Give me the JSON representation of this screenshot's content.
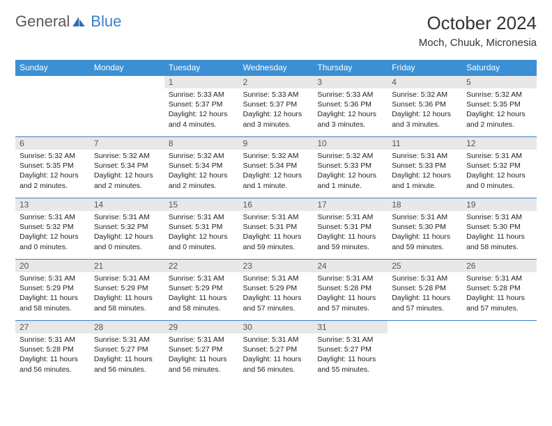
{
  "brand": {
    "part1": "General",
    "part2": "Blue",
    "icon_color": "#2e6fb5"
  },
  "header": {
    "title": "October 2024",
    "location": "Moch, Chuuk, Micronesia"
  },
  "colors": {
    "header_bg": "#3b8fd4",
    "header_fg": "#ffffff",
    "daynum_bg": "#e8e8e8",
    "rule": "#3b7fc4"
  },
  "day_labels": [
    "Sunday",
    "Monday",
    "Tuesday",
    "Wednesday",
    "Thursday",
    "Friday",
    "Saturday"
  ],
  "weeks": [
    [
      null,
      null,
      {
        "n": "1",
        "sr": "5:33 AM",
        "ss": "5:37 PM",
        "dl": "12 hours and 4 minutes."
      },
      {
        "n": "2",
        "sr": "5:33 AM",
        "ss": "5:37 PM",
        "dl": "12 hours and 3 minutes."
      },
      {
        "n": "3",
        "sr": "5:33 AM",
        "ss": "5:36 PM",
        "dl": "12 hours and 3 minutes."
      },
      {
        "n": "4",
        "sr": "5:32 AM",
        "ss": "5:36 PM",
        "dl": "12 hours and 3 minutes."
      },
      {
        "n": "5",
        "sr": "5:32 AM",
        "ss": "5:35 PM",
        "dl": "12 hours and 2 minutes."
      }
    ],
    [
      {
        "n": "6",
        "sr": "5:32 AM",
        "ss": "5:35 PM",
        "dl": "12 hours and 2 minutes."
      },
      {
        "n": "7",
        "sr": "5:32 AM",
        "ss": "5:34 PM",
        "dl": "12 hours and 2 minutes."
      },
      {
        "n": "8",
        "sr": "5:32 AM",
        "ss": "5:34 PM",
        "dl": "12 hours and 2 minutes."
      },
      {
        "n": "9",
        "sr": "5:32 AM",
        "ss": "5:34 PM",
        "dl": "12 hours and 1 minute."
      },
      {
        "n": "10",
        "sr": "5:32 AM",
        "ss": "5:33 PM",
        "dl": "12 hours and 1 minute."
      },
      {
        "n": "11",
        "sr": "5:31 AM",
        "ss": "5:33 PM",
        "dl": "12 hours and 1 minute."
      },
      {
        "n": "12",
        "sr": "5:31 AM",
        "ss": "5:32 PM",
        "dl": "12 hours and 0 minutes."
      }
    ],
    [
      {
        "n": "13",
        "sr": "5:31 AM",
        "ss": "5:32 PM",
        "dl": "12 hours and 0 minutes."
      },
      {
        "n": "14",
        "sr": "5:31 AM",
        "ss": "5:32 PM",
        "dl": "12 hours and 0 minutes."
      },
      {
        "n": "15",
        "sr": "5:31 AM",
        "ss": "5:31 PM",
        "dl": "12 hours and 0 minutes."
      },
      {
        "n": "16",
        "sr": "5:31 AM",
        "ss": "5:31 PM",
        "dl": "11 hours and 59 minutes."
      },
      {
        "n": "17",
        "sr": "5:31 AM",
        "ss": "5:31 PM",
        "dl": "11 hours and 59 minutes."
      },
      {
        "n": "18",
        "sr": "5:31 AM",
        "ss": "5:30 PM",
        "dl": "11 hours and 59 minutes."
      },
      {
        "n": "19",
        "sr": "5:31 AM",
        "ss": "5:30 PM",
        "dl": "11 hours and 58 minutes."
      }
    ],
    [
      {
        "n": "20",
        "sr": "5:31 AM",
        "ss": "5:29 PM",
        "dl": "11 hours and 58 minutes."
      },
      {
        "n": "21",
        "sr": "5:31 AM",
        "ss": "5:29 PM",
        "dl": "11 hours and 58 minutes."
      },
      {
        "n": "22",
        "sr": "5:31 AM",
        "ss": "5:29 PM",
        "dl": "11 hours and 58 minutes."
      },
      {
        "n": "23",
        "sr": "5:31 AM",
        "ss": "5:29 PM",
        "dl": "11 hours and 57 minutes."
      },
      {
        "n": "24",
        "sr": "5:31 AM",
        "ss": "5:28 PM",
        "dl": "11 hours and 57 minutes."
      },
      {
        "n": "25",
        "sr": "5:31 AM",
        "ss": "5:28 PM",
        "dl": "11 hours and 57 minutes."
      },
      {
        "n": "26",
        "sr": "5:31 AM",
        "ss": "5:28 PM",
        "dl": "11 hours and 57 minutes."
      }
    ],
    [
      {
        "n": "27",
        "sr": "5:31 AM",
        "ss": "5:28 PM",
        "dl": "11 hours and 56 minutes."
      },
      {
        "n": "28",
        "sr": "5:31 AM",
        "ss": "5:27 PM",
        "dl": "11 hours and 56 minutes."
      },
      {
        "n": "29",
        "sr": "5:31 AM",
        "ss": "5:27 PM",
        "dl": "11 hours and 56 minutes."
      },
      {
        "n": "30",
        "sr": "5:31 AM",
        "ss": "5:27 PM",
        "dl": "11 hours and 56 minutes."
      },
      {
        "n": "31",
        "sr": "5:31 AM",
        "ss": "5:27 PM",
        "dl": "11 hours and 55 minutes."
      },
      null,
      null
    ]
  ],
  "field_labels": {
    "sunrise": "Sunrise: ",
    "sunset": "Sunset: ",
    "daylight": "Daylight: "
  }
}
